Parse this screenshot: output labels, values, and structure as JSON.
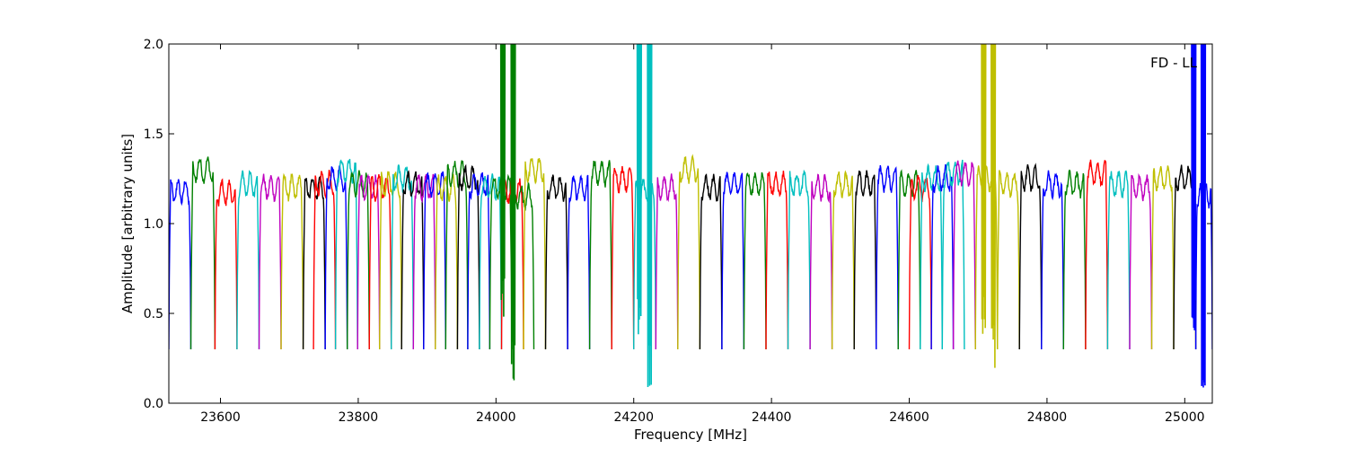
{
  "chart_data": {
    "type": "line",
    "title": "",
    "annotation": "FD - LL",
    "xlabel": "Frequency [MHz]",
    "ylabel": "Amplitude [arbitrary units]",
    "xlim": [
      23525,
      25040
    ],
    "ylim": [
      0.0,
      2.0
    ],
    "grid": false,
    "legend": "none",
    "x_ticks": [
      23600,
      23800,
      24000,
      24200,
      24400,
      24600,
      24800,
      25000
    ],
    "x_tick_labels": [
      "23600",
      "23800",
      "24000",
      "24200",
      "24400",
      "24600",
      "24800",
      "25000"
    ],
    "y_ticks": [
      0.0,
      0.5,
      1.0,
      1.5,
      2.0
    ],
    "y_tick_labels": [
      "0.0",
      "0.5",
      "1.0",
      "1.5",
      "2.0"
    ],
    "band_width_mhz": 32,
    "dip_min": 0.3,
    "color_cycle": [
      "#0000ff",
      "#008000",
      "#ff0000",
      "#00bfbf",
      "#bf00bf",
      "#bfbf00",
      "#000000"
    ],
    "series": [
      {
        "x_start": 23525,
        "x_end": 23557,
        "color": "#0000ff",
        "level": 1.18
      },
      {
        "x_start": 23557,
        "x_end": 23592,
        "color": "#008000",
        "level": 1.3
      },
      {
        "x_start": 23592,
        "x_end": 23624,
        "color": "#ff0000",
        "level": 1.17
      },
      {
        "x_start": 23624,
        "x_end": 23656,
        "color": "#00bfbf",
        "level": 1.22
      },
      {
        "x_start": 23656,
        "x_end": 23688,
        "color": "#bf00bf",
        "level": 1.2
      },
      {
        "x_start": 23688,
        "x_end": 23720,
        "color": "#bfbf00",
        "level": 1.2
      },
      {
        "x_start": 23720,
        "x_end": 23752,
        "color": "#000000",
        "level": 1.2
      },
      {
        "x_start": 23735,
        "x_end": 23767,
        "color": "#ff0000",
        "level": 1.22
      },
      {
        "x_start": 23752,
        "x_end": 23784,
        "color": "#0000ff",
        "level": 1.25
      },
      {
        "x_start": 23767,
        "x_end": 23799,
        "color": "#00bfbf",
        "level": 1.3
      },
      {
        "x_start": 23784,
        "x_end": 23816,
        "color": "#008000",
        "level": 1.22
      },
      {
        "x_start": 23799,
        "x_end": 23831,
        "color": "#bf00bf",
        "level": 1.2
      },
      {
        "x_start": 23816,
        "x_end": 23848,
        "color": "#ff0000",
        "level": 1.2
      },
      {
        "x_start": 23831,
        "x_end": 23863,
        "color": "#bfbf00",
        "level": 1.22
      },
      {
        "x_start": 23848,
        "x_end": 23880,
        "color": "#00bfbf",
        "level": 1.25
      },
      {
        "x_start": 23863,
        "x_end": 23895,
        "color": "#000000",
        "level": 1.22
      },
      {
        "x_start": 23880,
        "x_end": 23912,
        "color": "#bf00bf",
        "level": 1.2
      },
      {
        "x_start": 23895,
        "x_end": 23927,
        "color": "#0000ff",
        "level": 1.22
      },
      {
        "x_start": 23912,
        "x_end": 23944,
        "color": "#bfbf00",
        "level": 1.2
      },
      {
        "x_start": 23927,
        "x_end": 23959,
        "color": "#008000",
        "level": 1.28
      },
      {
        "x_start": 23944,
        "x_end": 23976,
        "color": "#000000",
        "level": 1.25
      },
      {
        "x_start": 23959,
        "x_end": 23991,
        "color": "#0000ff",
        "level": 1.22
      },
      {
        "x_start": 23976,
        "x_end": 24008,
        "color": "#00bfbf",
        "level": 1.2
      },
      {
        "x_start": 23991,
        "x_end": 24023,
        "color": "#008000",
        "level": 1.2
      },
      {
        "x_start": 24008,
        "x_end": 24040,
        "color": "#ff0000",
        "level": 1.18
      },
      {
        "x_start": 24023,
        "x_end": 24055,
        "color": "#008000",
        "level": 1.15
      },
      {
        "x_start": 24040,
        "x_end": 24072,
        "color": "#bfbf00",
        "level": 1.3
      },
      {
        "x_start": 24072,
        "x_end": 24104,
        "color": "#000000",
        "level": 1.2
      },
      {
        "x_start": 24104,
        "x_end": 24136,
        "color": "#0000ff",
        "level": 1.2
      },
      {
        "x_start": 24136,
        "x_end": 24168,
        "color": "#008000",
        "level": 1.28
      },
      {
        "x_start": 24168,
        "x_end": 24200,
        "color": "#ff0000",
        "level": 1.25
      },
      {
        "x_start": 24200,
        "x_end": 24232,
        "color": "#00bfbf",
        "level": 1.18
      },
      {
        "x_start": 24232,
        "x_end": 24264,
        "color": "#bf00bf",
        "level": 1.2
      },
      {
        "x_start": 24264,
        "x_end": 24296,
        "color": "#bfbf00",
        "level": 1.3
      },
      {
        "x_start": 24296,
        "x_end": 24328,
        "color": "#000000",
        "level": 1.2
      },
      {
        "x_start": 24328,
        "x_end": 24360,
        "color": "#0000ff",
        "level": 1.22
      },
      {
        "x_start": 24360,
        "x_end": 24392,
        "color": "#008000",
        "level": 1.22
      },
      {
        "x_start": 24392,
        "x_end": 24424,
        "color": "#ff0000",
        "level": 1.22
      },
      {
        "x_start": 24424,
        "x_end": 24456,
        "color": "#00bfbf",
        "level": 1.22
      },
      {
        "x_start": 24456,
        "x_end": 24488,
        "color": "#bf00bf",
        "level": 1.2
      },
      {
        "x_start": 24488,
        "x_end": 24520,
        "color": "#bfbf00",
        "level": 1.22
      },
      {
        "x_start": 24520,
        "x_end": 24552,
        "color": "#000000",
        "level": 1.22
      },
      {
        "x_start": 24552,
        "x_end": 24584,
        "color": "#0000ff",
        "level": 1.25
      },
      {
        "x_start": 24584,
        "x_end": 24616,
        "color": "#008000",
        "level": 1.22
      },
      {
        "x_start": 24600,
        "x_end": 24632,
        "color": "#ff0000",
        "level": 1.2
      },
      {
        "x_start": 24616,
        "x_end": 24648,
        "color": "#00bfbf",
        "level": 1.25
      },
      {
        "x_start": 24632,
        "x_end": 24664,
        "color": "#0000ff",
        "level": 1.25
      },
      {
        "x_start": 24648,
        "x_end": 24680,
        "color": "#00bfbf",
        "level": 1.28
      },
      {
        "x_start": 24664,
        "x_end": 24696,
        "color": "#bf00bf",
        "level": 1.28
      },
      {
        "x_start": 24696,
        "x_end": 24728,
        "color": "#bfbf00",
        "level": 1.25
      },
      {
        "x_start": 24728,
        "x_end": 24760,
        "color": "#bfbf00",
        "level": 1.22
      },
      {
        "x_start": 24760,
        "x_end": 24792,
        "color": "#000000",
        "level": 1.25
      },
      {
        "x_start": 24792,
        "x_end": 24824,
        "color": "#0000ff",
        "level": 1.22
      },
      {
        "x_start": 24824,
        "x_end": 24856,
        "color": "#008000",
        "level": 1.22
      },
      {
        "x_start": 24856,
        "x_end": 24888,
        "color": "#ff0000",
        "level": 1.28
      },
      {
        "x_start": 24888,
        "x_end": 24920,
        "color": "#00bfbf",
        "level": 1.22
      },
      {
        "x_start": 24920,
        "x_end": 24952,
        "color": "#bf00bf",
        "level": 1.2
      },
      {
        "x_start": 24952,
        "x_end": 24984,
        "color": "#bfbf00",
        "level": 1.25
      },
      {
        "x_start": 24984,
        "x_end": 25016,
        "color": "#000000",
        "level": 1.25
      },
      {
        "x_start": 25016,
        "x_end": 25040,
        "color": "#0000ff",
        "level": 1.15
      }
    ],
    "spikes": [
      {
        "x": 24010,
        "color": "#008000",
        "y_low": 0.4,
        "y_high": 2.0
      },
      {
        "x": 24025,
        "color": "#008000",
        "y_low": 0.1,
        "y_high": 2.0
      },
      {
        "x": 24208,
        "color": "#00bfbf",
        "y_low": 0.35,
        "y_high": 2.0
      },
      {
        "x": 24223,
        "color": "#00bfbf",
        "y_low": 0.05,
        "y_high": 2.0
      },
      {
        "x": 24708,
        "color": "#bfbf00",
        "y_low": 0.3,
        "y_high": 2.0
      },
      {
        "x": 24722,
        "color": "#bfbf00",
        "y_low": 0.18,
        "y_high": 2.0
      },
      {
        "x": 25013,
        "color": "#0000ff",
        "y_low": 0.38,
        "y_high": 2.0
      },
      {
        "x": 25027,
        "color": "#0000ff",
        "y_low": 0.02,
        "y_high": 2.0
      }
    ]
  }
}
